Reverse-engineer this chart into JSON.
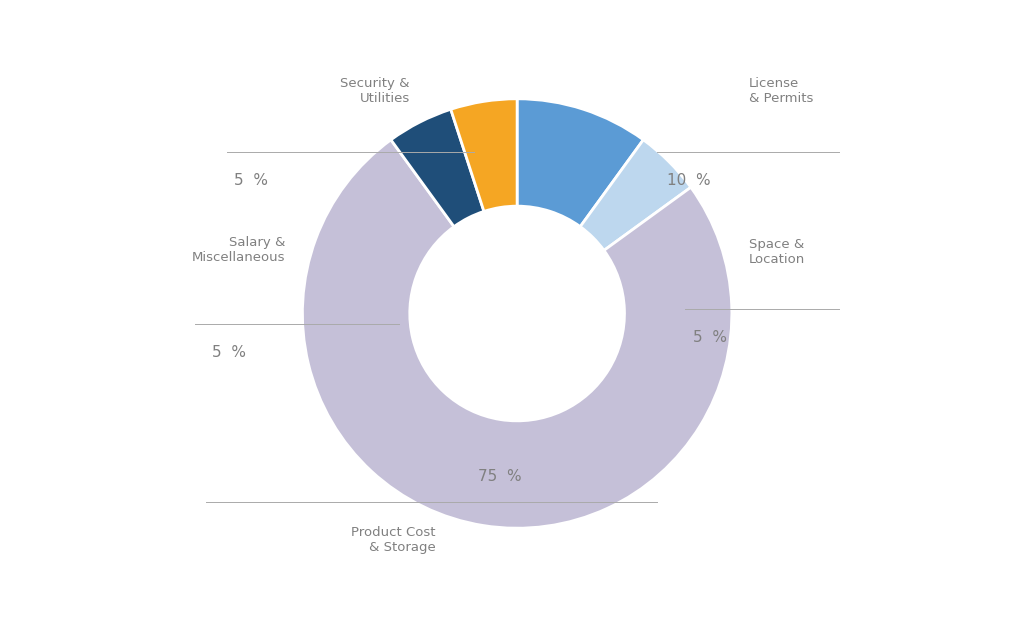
{
  "slices": [
    {
      "label": "License\n& Permits",
      "value": 10,
      "color": "#5b9bd5",
      "pct_label": "10  %"
    },
    {
      "label": "Space &\nLocation",
      "value": 5,
      "color": "#bdd7ee",
      "pct_label": "5  %"
    },
    {
      "label": "Product Cost\n& Storage",
      "value": 75,
      "color": "#c5c0d8",
      "pct_label": "75  %"
    },
    {
      "label": "Salary &\nMiscellaneous",
      "value": 5,
      "color": "#1f4e79",
      "pct_label": "5  %"
    },
    {
      "label": "Security &\nUtilities",
      "value": 5,
      "color": "#f5a623",
      "pct_label": "5  %"
    }
  ],
  "background_color": "#ffffff",
  "label_font_size": 9.5,
  "pct_font_size": 11,
  "wedge_edgecolor": "#ffffff",
  "wedge_linewidth": 2.0,
  "text_color": "#808080",
  "line_color": "#aaaaaa"
}
